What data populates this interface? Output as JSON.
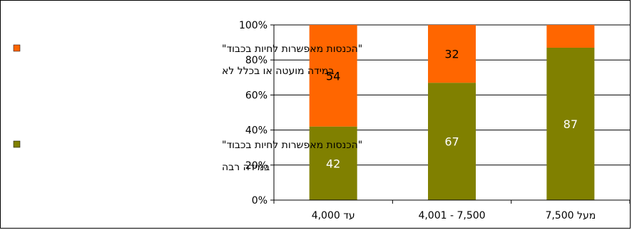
{
  "chart_data": {
    "type": "bar",
    "stacked": true,
    "percent_scale": true,
    "categories": [
      "עד 4,000",
      "4,001 - 7,500",
      "מעל 7,500"
    ],
    "series": [
      {
        "name": "\"הכנסות מאפשרות לחיות בכבוד\" במידה רבה",
        "name_lines": [
          "\"הכנסות מאפשרות לחיות בכבוד\"",
          "במידה רבה"
        ],
        "values": [
          42,
          67,
          87
        ],
        "color": "#808000",
        "label_color": "#ffffff"
      },
      {
        "name": "\"הכנסות מאפשרות לחיות בכבוד\" במידה מועטה או בכלל לא",
        "name_lines": [
          "\"הכנסות מאפשרות לחיות בכבוד\"",
          "במידה מועטה או בכלל לא"
        ],
        "values": [
          54,
          32,
          null
        ],
        "color": "#ff6600",
        "label_color": "#000000"
      }
    ],
    "yticks": [
      "0%",
      "20%",
      "40%",
      "60%",
      "80%",
      "100%"
    ],
    "ylim": [
      0,
      100
    ],
    "grid": true,
    "legend_position": "left",
    "title": "",
    "xlabel": "",
    "ylabel": ""
  }
}
